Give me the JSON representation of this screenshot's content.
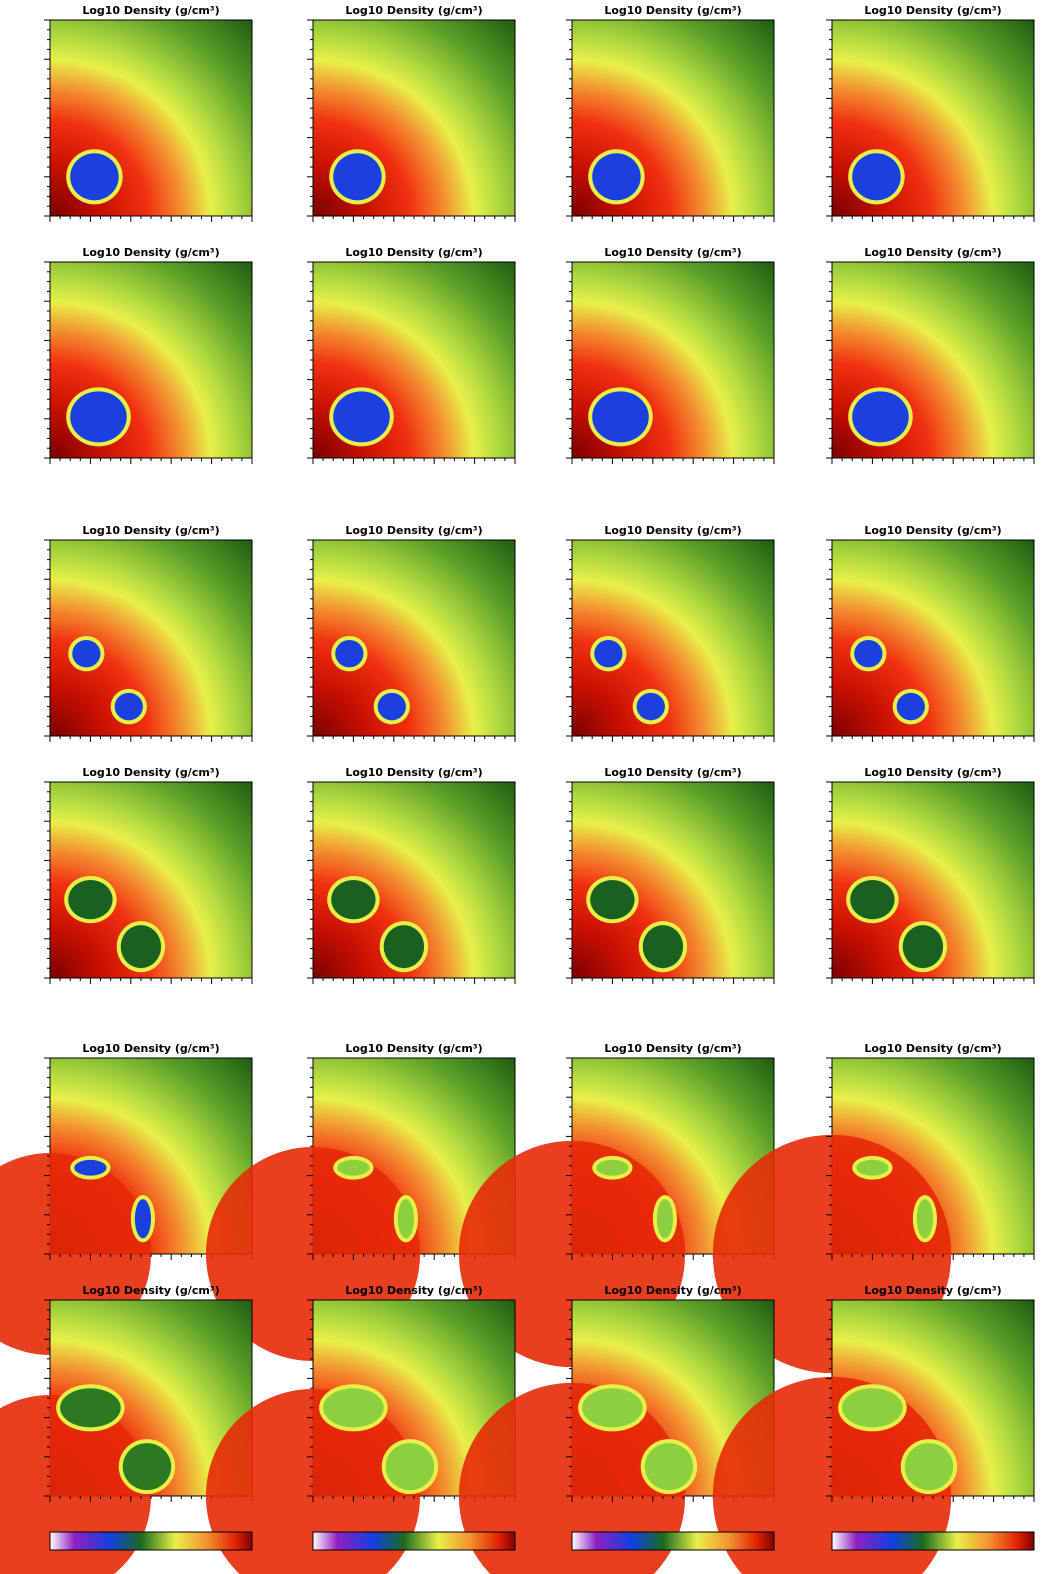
{
  "panels": [
    {
      "title": "Log10 Density (g/cm³)"
    },
    {
      "title": "Log10 Density (g/cm³)"
    },
    {
      "title": "Log10 Density (g/cm³)"
    },
    {
      "title": "Log10 Density (g/cm³)"
    },
    {
      "title": "Log10 Density (g/cm³)"
    },
    {
      "title": "Log10 Density (g/cm³)"
    },
    {
      "title": "Log10 Density (g/cm³)"
    },
    {
      "title": "Log10 Density (g/cm³)"
    },
    {
      "title": "Log10 Density (g/cm³)"
    },
    {
      "title": "Log10 Density (g/cm³)"
    },
    {
      "title": "Log10 Density (g/cm³)"
    },
    {
      "title": "Log10 Density (g/cm³)"
    },
    {
      "title": "Log10 Density (g/cm³)"
    },
    {
      "title": "Log10 Density (g/cm³)"
    },
    {
      "title": "Log10 Density (g/cm³)"
    },
    {
      "title": "Log10 Density (g/cm³)"
    },
    {
      "title": "Log10 Density (g/cm³)"
    },
    {
      "title": "Log10 Density (g/cm³)"
    },
    {
      "title": "Log10 Density (g/cm³)"
    },
    {
      "title": "Log10 Density (g/cm³)"
    },
    {
      "title": "Log10 Density (g/cm³)"
    },
    {
      "title": "Log10 Density (g/cm³)"
    },
    {
      "title": "Log10 Density (g/cm³)"
    },
    {
      "title": "Log10 Density (g/cm³)"
    }
  ]
}
